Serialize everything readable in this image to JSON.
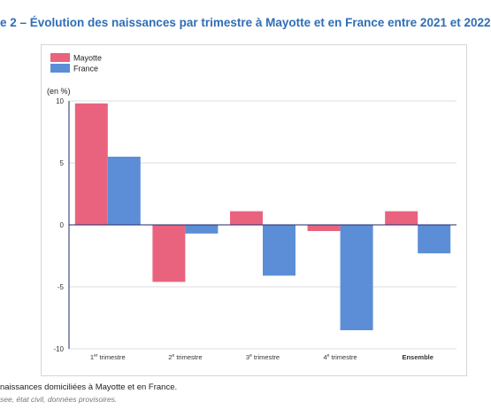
{
  "figure": {
    "title": "e 2 – Évolution des naissances par trimestre à Mayotte et en France entre 2021 et 2022",
    "note": "naissances domiciliées à Mayotte et en France.",
    "source": "see, état civil, données provisoires."
  },
  "chart_data": {
    "type": "bar",
    "categories": [
      "1er trimestre",
      "2e trimestre",
      "3e trimestre",
      "4e trimestre",
      "Ensemble"
    ],
    "category_labels": [
      {
        "main": "1",
        "sup": "er",
        "rest": " trimestre",
        "bold": false
      },
      {
        "main": "2",
        "sup": "e",
        "rest": " trimestre",
        "bold": false
      },
      {
        "main": "3",
        "sup": "e",
        "rest": " trimestre",
        "bold": false
      },
      {
        "main": "4",
        "sup": "e",
        "rest": " trimestre",
        "bold": false
      },
      {
        "main": "Ensemble",
        "sup": "",
        "rest": "",
        "bold": true
      }
    ],
    "series": [
      {
        "name": "Mayotte",
        "color": "#e9637f",
        "values": [
          9.8,
          -4.6,
          1.1,
          -0.5,
          1.1
        ]
      },
      {
        "name": "France",
        "color": "#5b8ed6",
        "values": [
          5.5,
          -0.7,
          -4.1,
          -8.5,
          -2.3
        ]
      }
    ],
    "ylabel": "(en %)",
    "ylim": [
      -10,
      10
    ],
    "yticks": [
      10,
      5,
      0,
      -5,
      -10
    ],
    "ytick_labels": [
      "10",
      "5",
      "0",
      "-5",
      "-10"
    ],
    "grid": true,
    "legend_position": "top-left"
  }
}
